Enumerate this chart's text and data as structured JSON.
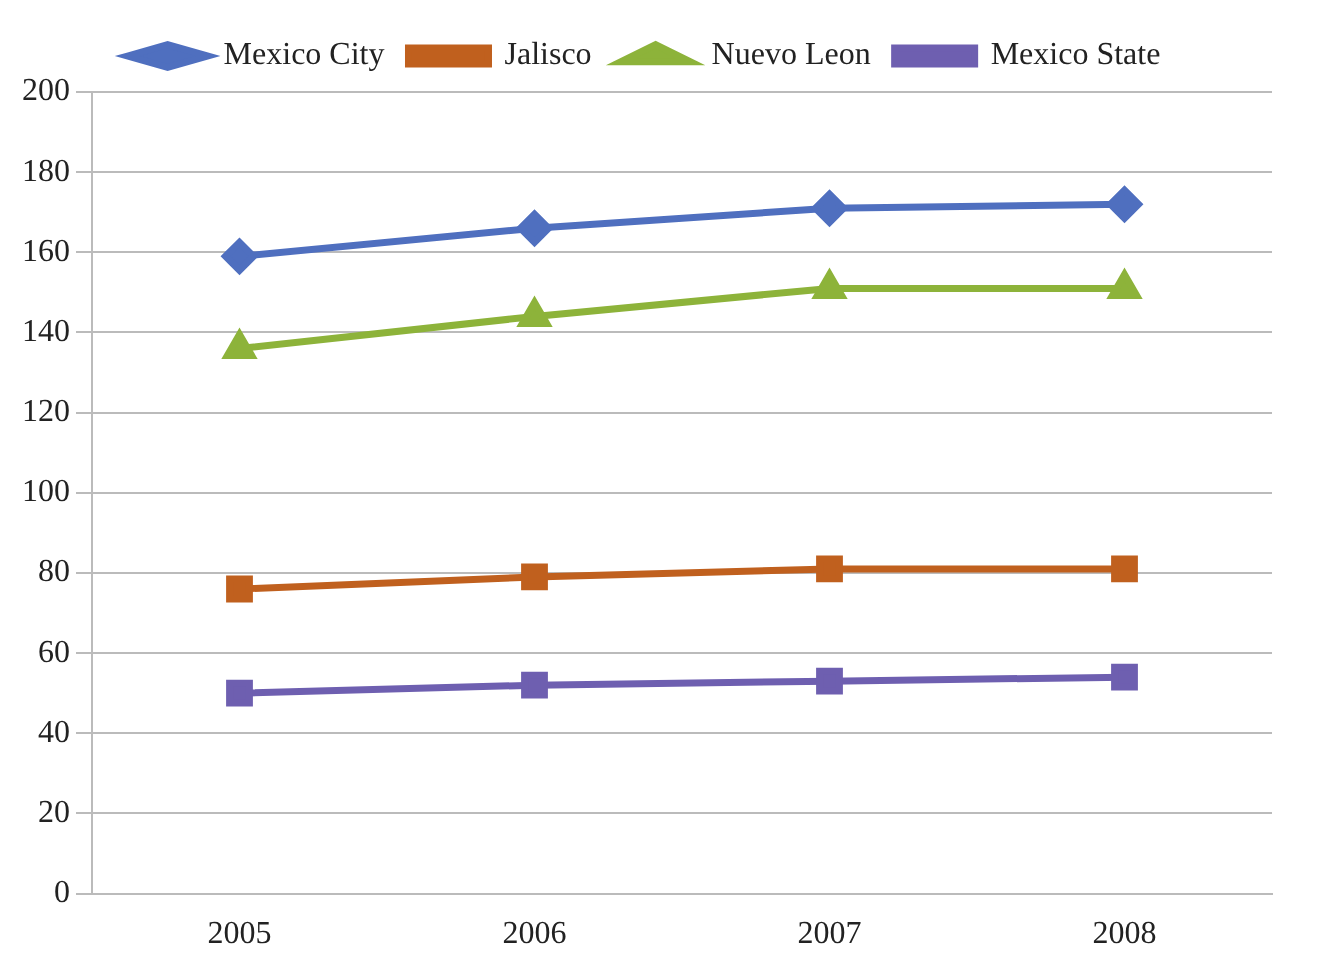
{
  "chart_data": {
    "type": "line",
    "categories": [
      "2005",
      "2006",
      "2007",
      "2008"
    ],
    "series": [
      {
        "name": "Mexico City",
        "color": "#4f6fbf",
        "marker": "diamond",
        "values": [
          159,
          166,
          171,
          172
        ]
      },
      {
        "name": "Jalisco",
        "color": "#c0601e",
        "marker": "square",
        "values": [
          76,
          79,
          81,
          81
        ]
      },
      {
        "name": "Nuevo Leon",
        "color": "#8db33a",
        "marker": "triangle",
        "values": [
          136,
          144,
          151,
          151
        ]
      },
      {
        "name": "Mexico State",
        "color": "#6e5fb0",
        "marker": "square",
        "values": [
          50,
          52,
          53,
          54
        ]
      }
    ],
    "ylim": [
      0,
      200
    ],
    "yticks": [
      0,
      20,
      40,
      60,
      80,
      100,
      120,
      140,
      160,
      180,
      200
    ],
    "grid": "y",
    "legend": "top",
    "line_style": "solid"
  }
}
